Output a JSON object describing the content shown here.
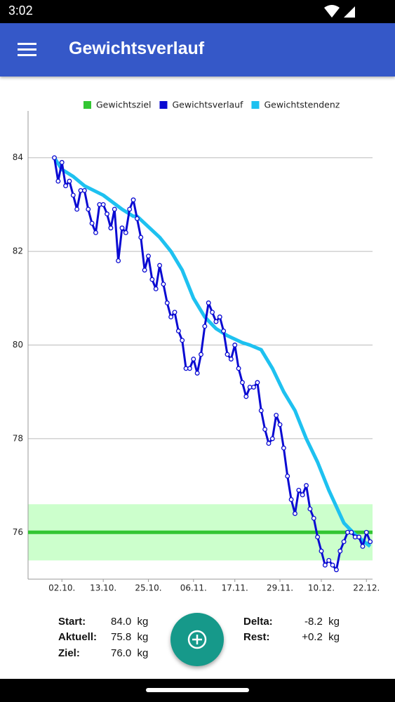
{
  "status_bar": {
    "time": "3:02"
  },
  "app_bar": {
    "title": "Gewichtsverlauf"
  },
  "chart_data": {
    "type": "line",
    "x": [
      0,
      1,
      2,
      3,
      4,
      5,
      6,
      7,
      8,
      9,
      10,
      11,
      12,
      13,
      14,
      15,
      16,
      17,
      18,
      19,
      20,
      21,
      22,
      23,
      24,
      25,
      26,
      27,
      28,
      29,
      30,
      31,
      32,
      33,
      34,
      35,
      36,
      37,
      38,
      39,
      40,
      41,
      42,
      43,
      44,
      45,
      46,
      47,
      48,
      49,
      50,
      51,
      52,
      53,
      54,
      55,
      56,
      57,
      58,
      59,
      60,
      61,
      62,
      63,
      64,
      65,
      66,
      67,
      68,
      69,
      70,
      71,
      72,
      73,
      74,
      75,
      76,
      77,
      78,
      79,
      80,
      81,
      82,
      83,
      84
    ],
    "xlim": [
      -7,
      85
    ],
    "xticks": [
      {
        "value": 2,
        "label": "02.10."
      },
      {
        "value": 13,
        "label": "13.10."
      },
      {
        "value": 25,
        "label": "25.10."
      },
      {
        "value": 37,
        "label": "06.11."
      },
      {
        "value": 48,
        "label": "17.11."
      },
      {
        "value": 60,
        "label": "29.11."
      },
      {
        "value": 71,
        "label": "10.12."
      },
      {
        "value": 83,
        "label": "22.12."
      }
    ],
    "ylim": [
      75,
      85
    ],
    "yticks": [
      76,
      78,
      80,
      82,
      84
    ],
    "grid": true,
    "legend": "top",
    "goal": {
      "name": "Gewichtsziel",
      "color": "#33c633",
      "band_color": "#ccffcc",
      "value": 76,
      "band": [
        75.4,
        76.6
      ]
    },
    "series": [
      {
        "name": "Gewichtsverlauf",
        "color": "#0a0ad2",
        "markers": true,
        "values": [
          84.0,
          83.5,
          83.9,
          83.4,
          83.5,
          83.2,
          82.9,
          83.3,
          83.3,
          82.9,
          82.6,
          82.4,
          83.0,
          83.0,
          82.8,
          82.5,
          82.9,
          81.8,
          82.5,
          82.4,
          82.9,
          83.1,
          82.7,
          82.3,
          81.6,
          81.9,
          81.4,
          81.2,
          81.7,
          81.3,
          80.9,
          80.6,
          80.7,
          80.3,
          80.1,
          79.5,
          79.5,
          79.7,
          79.4,
          79.8,
          80.4,
          80.9,
          80.7,
          80.5,
          80.6,
          80.3,
          79.8,
          79.7,
          80.0,
          79.5,
          79.2,
          78.9,
          79.1,
          79.1,
          79.2,
          78.6,
          78.2,
          77.9,
          78.0,
          78.5,
          78.3,
          77.8,
          77.2,
          76.7,
          76.4,
          76.9,
          76.8,
          77.0,
          76.5,
          76.3,
          75.9,
          75.6,
          75.3,
          75.4,
          75.3,
          75.2,
          75.6,
          75.8,
          76.0,
          76.0,
          75.9,
          75.9,
          75.7,
          76.0,
          75.8
        ]
      },
      {
        "name": "Gewichtstendenz",
        "color": "#1ec1f0",
        "markers": false,
        "x": [
          0,
          2,
          5,
          8,
          13,
          18,
          21,
          22,
          24,
          28,
          31,
          34,
          37,
          40,
          43,
          46,
          50,
          52,
          55,
          58,
          61,
          64,
          67,
          70,
          73,
          77,
          80,
          84
        ],
        "values": [
          84.0,
          83.75,
          83.6,
          83.4,
          83.2,
          82.9,
          82.75,
          82.75,
          82.6,
          82.3,
          82.0,
          81.6,
          81.0,
          80.6,
          80.35,
          80.2,
          80.05,
          80.0,
          79.9,
          79.5,
          79.0,
          78.6,
          78.0,
          77.5,
          76.9,
          76.2,
          75.95,
          75.7
        ]
      }
    ]
  },
  "stats": {
    "left": [
      {
        "label": "Start:",
        "value": "84.0  kg"
      },
      {
        "label": "Aktuell:",
        "value": "75.8  kg"
      },
      {
        "label": "Ziel:",
        "value": "76.0  kg"
      }
    ],
    "right": [
      {
        "label": "Delta:",
        "value": "-8.2  kg"
      },
      {
        "label": "Rest:",
        "value": "+0.2  kg"
      }
    ]
  }
}
